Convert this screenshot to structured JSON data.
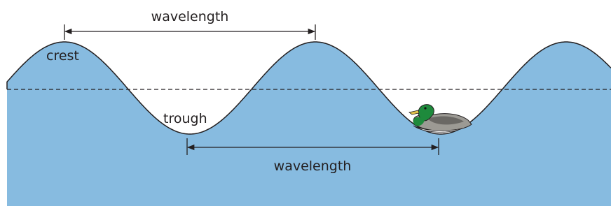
{
  "labels": {
    "top_wavelength": "wavelength",
    "crest": "crest",
    "trough": "trough",
    "bottom_wavelength": "wavelength"
  }
}
